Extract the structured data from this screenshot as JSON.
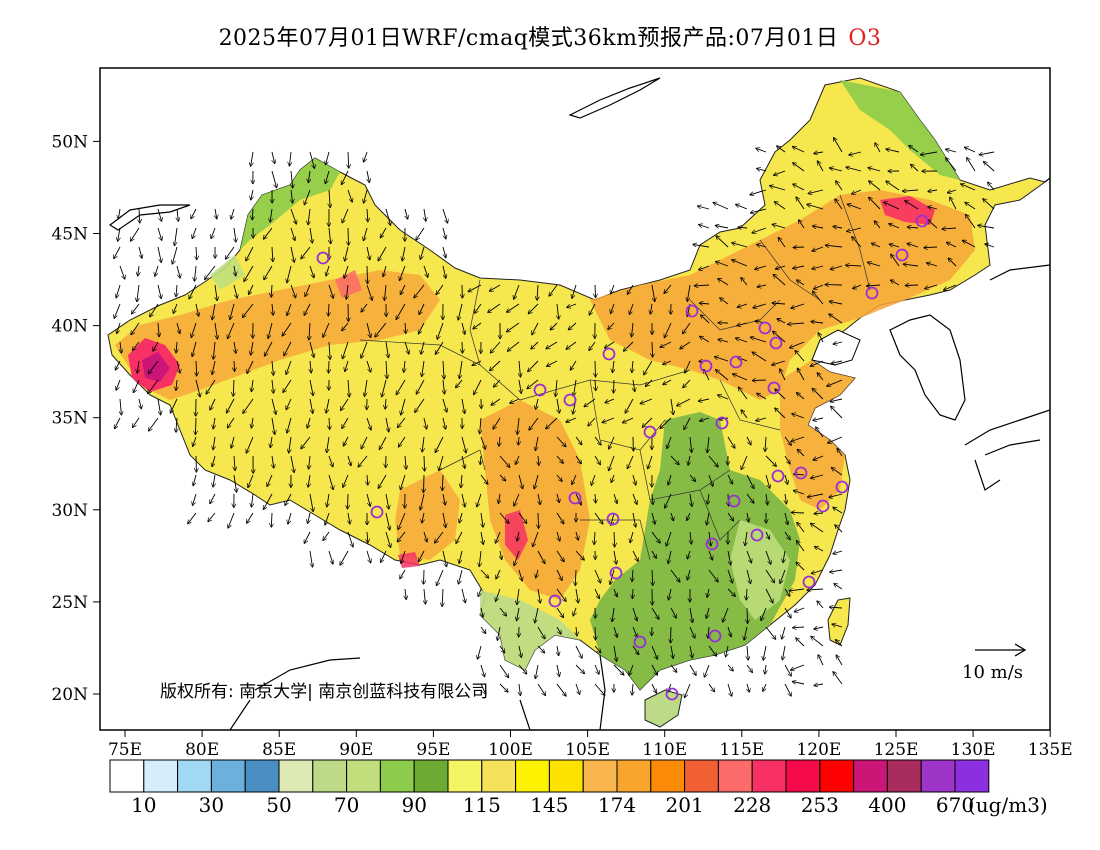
{
  "title": {
    "main": "2025年07月01日WRF/cmaq模式36km预报产品:07月01日",
    "pollutant": "O3",
    "pollutant_color": "#e02020"
  },
  "axes": {
    "lon_ticks": [
      "75E",
      "80E",
      "85E",
      "90E",
      "95E",
      "100E",
      "105E",
      "110E",
      "115E",
      "120E",
      "125E",
      "130E",
      "135E"
    ],
    "lat_ticks": [
      "20N",
      "25N",
      "30N",
      "35N",
      "40N",
      "45N",
      "50N"
    ]
  },
  "map": {
    "land_color_outside": "#ffffff",
    "low_region_color": "#7ab646",
    "mid_region_color": "#f5e74d",
    "high_region_color": "#f7a53a",
    "peak_region_color": "#e8306a",
    "station_color": "#9a2fd6"
  },
  "credit": "版权所有: 南京大学| 南京创蓝科技有限公司",
  "wind_reference": {
    "label": "10 m/s"
  },
  "colorbar": {
    "colors": [
      "#ffffff",
      "#d6eefb",
      "#a1d9f5",
      "#6cb0dd",
      "#4a8fc3",
      "#dde9b3",
      "#bddb87",
      "#c0df7c",
      "#8dcb4a",
      "#6caa33",
      "#f3f563",
      "#f5e25a",
      "#fdf200",
      "#fde200",
      "#f8b64c",
      "#f9a52b",
      "#fb8a08",
      "#f06034",
      "#fd6a6a",
      "#f73163",
      "#f50a4a",
      "#ff0000",
      "#cb1577",
      "#a82d5e",
      "#9c35c8",
      "#8b2fe0"
    ],
    "labels": [
      "10",
      "30",
      "50",
      "70",
      "90",
      "115",
      "145",
      "174",
      "201",
      "228",
      "253",
      "400",
      "670"
    ],
    "unit": "(ug/m3)"
  }
}
